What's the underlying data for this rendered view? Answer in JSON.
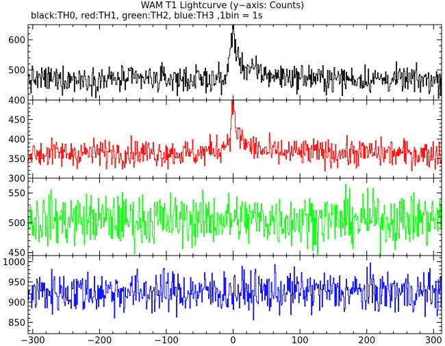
{
  "title": "WAM T1 Lightcurve (y−axis: Counts)",
  "subtitle": "black:TH0, red:TH1, green:TH2, blue:TH3 ,1bin = 1s",
  "chart_data": {
    "type": "line",
    "x_range": [
      -307,
      312
    ],
    "x_ticks": [
      -300,
      -200,
      -100,
      0,
      100,
      200,
      300
    ],
    "x_tick_labels": [
      "−300",
      "−200",
      "−100",
      "0",
      "100",
      "200",
      "300"
    ],
    "grid": false,
    "bin_seconds": 1,
    "panels": [
      {
        "name": "TH0",
        "color": "#000000",
        "ylim": [
          400,
          650
        ],
        "yticks": [
          400,
          500,
          600
        ],
        "ytick_labels": [
          "400",
          "500",
          "600"
        ],
        "baseline": 470,
        "noise": 22,
        "peak": {
          "x": 0,
          "y": 650,
          "decay_to": 540
        },
        "x": [
          -300,
          -250,
          -200,
          -150,
          -100,
          -50,
          -10,
          0,
          2,
          5,
          10,
          20,
          40,
          60,
          100,
          150,
          200,
          250,
          300,
          310
        ],
        "y": [
          468,
          470,
          469,
          468,
          470,
          468,
          470,
          650,
          580,
          545,
          525,
          505,
          490,
          480,
          475,
          470,
          470,
          468,
          466,
          465
        ]
      },
      {
        "name": "TH1",
        "color": "#ff0000",
        "ylim": [
          300,
          500
        ],
        "yticks": [
          300,
          350,
          400,
          450
        ],
        "ytick_labels": [
          "300",
          "350",
          "400",
          "450"
        ],
        "baseline": 365,
        "noise": 18,
        "peak": {
          "x": 0,
          "y": 500,
          "decay_to": 420
        },
        "x": [
          -300,
          -250,
          -200,
          -150,
          -100,
          -50,
          -15,
          -5,
          0,
          2,
          5,
          10,
          20,
          40,
          60,
          100,
          150,
          200,
          250,
          300,
          310
        ],
        "y": [
          362,
          364,
          365,
          366,
          365,
          363,
          380,
          410,
          500,
          450,
          420,
          400,
          385,
          372,
          366,
          365,
          364,
          365,
          363,
          362,
          362
        ]
      },
      {
        "name": "TH2",
        "color": "#00ff00",
        "ylim": [
          445,
          575
        ],
        "yticks": [
          450,
          500,
          550
        ],
        "ytick_labels": [
          "450",
          "500",
          "550"
        ],
        "baseline": 505,
        "noise": 22,
        "peak": null,
        "x": [
          -300,
          -200,
          -100,
          0,
          100,
          200,
          300,
          310
        ],
        "y": [
          505,
          505,
          505,
          506,
          505,
          505,
          505,
          505
        ]
      },
      {
        "name": "TH3",
        "color": "#0000ff",
        "ylim": [
          822,
          1015
        ],
        "yticks": [
          850,
          900,
          950,
          1000
        ],
        "ytick_labels": [
          "850",
          "900",
          "950",
          "1000"
        ],
        "baseline": 925,
        "noise": 27,
        "peak": null,
        "x": [
          -300,
          -200,
          -100,
          0,
          100,
          200,
          300,
          310
        ],
        "y": [
          925,
          926,
          925,
          925,
          926,
          925,
          924,
          925
        ]
      }
    ]
  }
}
